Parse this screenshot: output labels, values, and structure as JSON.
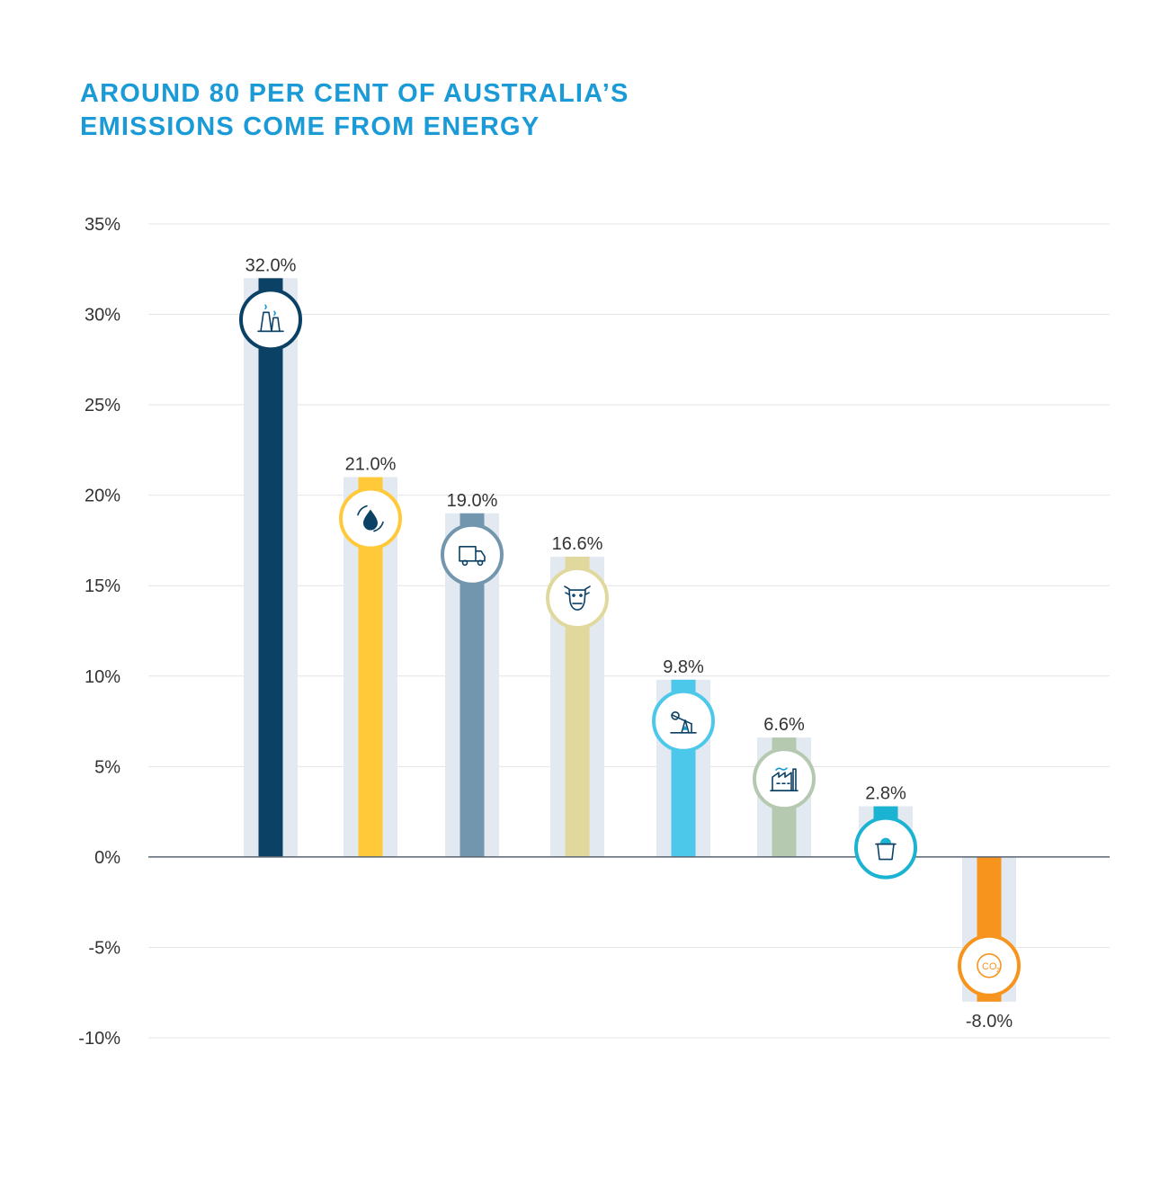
{
  "colors": {
    "title": "#1a9ad6",
    "bar_shadow": "#e3e9f1",
    "grid": "#e4e4e4",
    "zero_line": "#5a6470"
  },
  "chart_data": {
    "type": "bar",
    "title": [
      "AROUND 80 PER CENT OF AUSTRALIA’S",
      "EMISSIONS COME FROM ENERGY"
    ],
    "xlabel": "",
    "ylabel": "",
    "ylim": [
      -10,
      35
    ],
    "yticks": [
      35,
      30,
      25,
      20,
      15,
      10,
      5,
      0,
      -5,
      -10
    ],
    "ytick_labels": [
      "35%",
      "30%",
      "25%",
      "20%",
      "15%",
      "10%",
      "5%",
      "0%",
      "-5%",
      "-10%"
    ],
    "grid": true,
    "legend": "none",
    "bars": [
      {
        "value": 32.0,
        "label": "32.0%",
        "color": "#0c4166",
        "icon": "power-station-icon"
      },
      {
        "value": 21.0,
        "label": "21.0%",
        "color": "#ffc93a",
        "icon": "oil-drop-icon"
      },
      {
        "value": 19.0,
        "label": "19.0%",
        "color": "#7296ae",
        "icon": "truck-icon"
      },
      {
        "value": 16.6,
        "label": "16.6%",
        "color": "#e0d89d",
        "icon": "cow-icon"
      },
      {
        "value": 9.8,
        "label": "9.8%",
        "color": "#4cc8ea",
        "icon": "oil-pump-icon"
      },
      {
        "value": 6.6,
        "label": "6.6%",
        "color": "#b4c9b0",
        "icon": "factory-icon"
      },
      {
        "value": 2.8,
        "label": "2.8%",
        "color": "#1ab3d2",
        "icon": "bin-icon"
      },
      {
        "value": -8.0,
        "label": "-8.0%",
        "color": "#f7941e",
        "icon": "co2-leaf-icon"
      }
    ]
  }
}
